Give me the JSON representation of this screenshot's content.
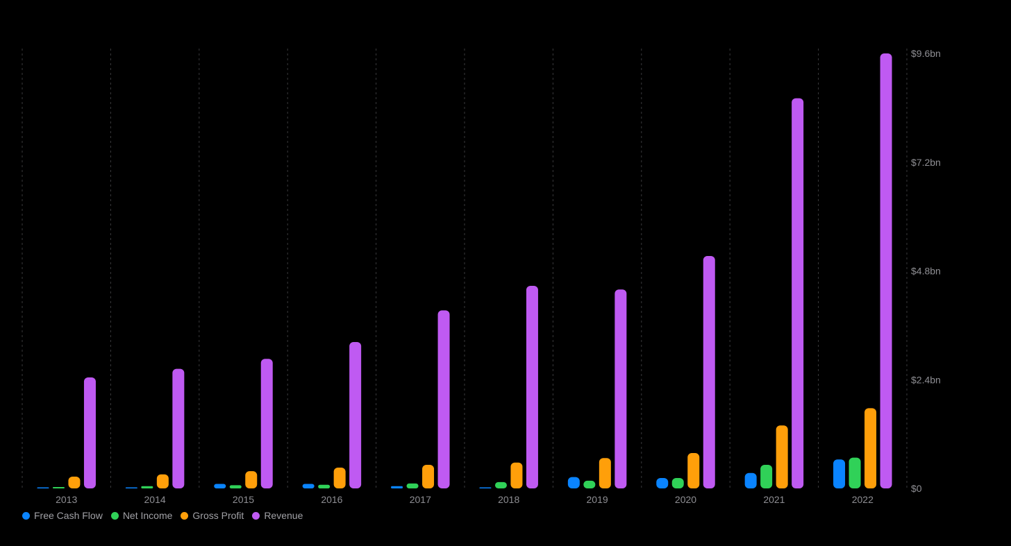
{
  "chart_data": {
    "type": "bar",
    "categories": [
      "2013",
      "2014",
      "2015",
      "2016",
      "2017",
      "2018",
      "2019",
      "2020",
      "2021",
      "2022"
    ],
    "series": [
      {
        "name": "Free Cash Flow",
        "color": "#0a84ff",
        "values": [
          0.01,
          0.02,
          0.1,
          0.1,
          0.05,
          0.02,
          0.25,
          0.23,
          0.34,
          0.64
        ]
      },
      {
        "name": "Net Income",
        "color": "#30d158",
        "values": [
          0.03,
          0.05,
          0.07,
          0.08,
          0.11,
          0.14,
          0.17,
          0.23,
          0.52,
          0.68
        ]
      },
      {
        "name": "Gross Profit",
        "color": "#ff9f0a",
        "values": [
          0.26,
          0.31,
          0.38,
          0.46,
          0.52,
          0.57,
          0.67,
          0.78,
          1.39,
          1.77
        ]
      },
      {
        "name": "Revenue",
        "color": "#bf5af2",
        "values": [
          2.45,
          2.64,
          2.86,
          3.23,
          3.93,
          4.47,
          4.39,
          5.13,
          8.61,
          9.6
        ]
      }
    ],
    "y_ticks": [
      "$0",
      "$2.4bn",
      "$4.8bn",
      "$7.2bn",
      "$9.6bn"
    ],
    "y_tick_values": [
      0,
      2.4,
      4.8,
      7.2,
      9.6
    ],
    "ylim": [
      0,
      9.6
    ],
    "grid": "vertical dashed",
    "legend_position": "bottom-left",
    "title": "",
    "xlabel": "",
    "ylabel": ""
  }
}
